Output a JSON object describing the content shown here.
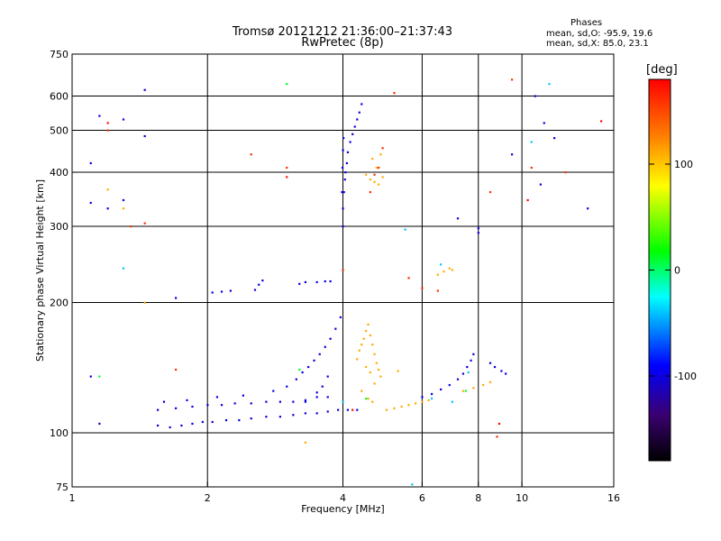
{
  "header": {
    "title_line1": "Tromsø 20121212 21:36:00–21:37:43",
    "title_line2": "RwPretec (8p)",
    "phase_heading": "Phases",
    "phase_stats_0": "mean, sd,O: -95.9, 19.6",
    "phase_stats_x": "mean, sd,X:  85.0, 23.1"
  },
  "colorbar": {
    "unit_label": "[deg]",
    "ticks": [
      {
        "value": 100,
        "label": "100"
      },
      {
        "value": 0,
        "label": "0"
      },
      {
        "value": -100,
        "label": "-100"
      }
    ],
    "range": [
      -180,
      180
    ],
    "colors": [
      "#000000",
      "#3a0070",
      "#0000ff",
      "#00ffff",
      "#00ff00",
      "#ffff00",
      "#ff8000",
      "#ff0000"
    ]
  },
  "chart_data": {
    "type": "scatter",
    "title": "Tromsø 20121212 21:36:00–21:37:43",
    "subtitle": "RwPretec (8p)",
    "xlabel": "Frequency [MHz]",
    "ylabel": "Stationary phase Virtual Height [km]",
    "xscale": "log",
    "yscale": "log",
    "xlim": [
      1,
      16
    ],
    "ylim": [
      75,
      750
    ],
    "grid": true,
    "xticks": [
      {
        "value": 1,
        "label": "1"
      },
      {
        "value": 2,
        "label": "2"
      },
      {
        "value": 4,
        "label": "4"
      },
      {
        "value": 6,
        "label": "6"
      },
      {
        "value": 8,
        "label": "8"
      },
      {
        "value": 10,
        "label": "10"
      },
      {
        "value": 16,
        "label": "16"
      }
    ],
    "xgrid": [
      2,
      4,
      6,
      8,
      10
    ],
    "yticks": [
      {
        "value": 75,
        "label": "75"
      },
      {
        "value": 100,
        "label": "100"
      },
      {
        "value": 200,
        "label": "200"
      },
      {
        "value": 300,
        "label": "300"
      },
      {
        "value": 400,
        "label": "400"
      },
      {
        "value": 500,
        "label": "500"
      },
      {
        "value": 600,
        "label": "600"
      },
      {
        "value": 750,
        "label": "750"
      }
    ],
    "ygrid": [
      100,
      200,
      300,
      400,
      500,
      600
    ],
    "series": [
      {
        "phase_deg": -100,
        "points": [
          [
            1.55,
            104
          ],
          [
            1.65,
            103
          ],
          [
            1.75,
            104
          ],
          [
            1.85,
            105
          ],
          [
            1.95,
            106
          ],
          [
            2.05,
            106
          ],
          [
            2.2,
            107
          ],
          [
            2.35,
            107
          ],
          [
            2.5,
            108
          ],
          [
            2.7,
            109
          ],
          [
            2.9,
            109
          ],
          [
            3.1,
            110
          ],
          [
            3.3,
            111
          ],
          [
            3.5,
            111
          ],
          [
            3.7,
            112
          ],
          [
            3.9,
            113
          ],
          [
            4.1,
            113
          ],
          [
            4.3,
            113
          ],
          [
            1.55,
            113
          ],
          [
            1.7,
            114
          ],
          [
            1.85,
            115
          ],
          [
            2.0,
            116
          ],
          [
            2.15,
            116
          ],
          [
            2.3,
            117
          ],
          [
            2.5,
            117
          ],
          [
            2.7,
            118
          ],
          [
            2.9,
            118
          ],
          [
            3.1,
            118
          ],
          [
            3.3,
            119
          ],
          [
            3.5,
            121
          ],
          [
            3.7,
            121
          ],
          [
            1.6,
            118
          ],
          [
            1.8,
            119
          ],
          [
            2.1,
            121
          ],
          [
            2.4,
            122
          ],
          [
            2.8,
            125
          ],
          [
            3.0,
            128
          ],
          [
            3.15,
            133
          ],
          [
            3.25,
            138
          ],
          [
            3.35,
            142
          ],
          [
            3.45,
            147
          ],
          [
            3.55,
            152
          ],
          [
            3.65,
            158
          ],
          [
            3.75,
            165
          ],
          [
            3.85,
            174
          ],
          [
            3.95,
            185
          ],
          [
            3.3,
            118
          ],
          [
            3.5,
            124
          ],
          [
            3.6,
            128
          ],
          [
            3.7,
            135
          ],
          [
            4.0,
            300
          ],
          [
            4.0,
            330
          ],
          [
            4.02,
            360
          ],
          [
            4.04,
            385
          ],
          [
            4.05,
            400
          ],
          [
            4.08,
            420
          ],
          [
            4.1,
            445
          ],
          [
            4.15,
            470
          ],
          [
            4.2,
            490
          ],
          [
            4.25,
            510
          ],
          [
            4.3,
            530
          ],
          [
            4.35,
            550
          ],
          [
            4.4,
            575
          ],
          [
            3.98,
            360
          ],
          [
            3.99,
            410
          ],
          [
            4.0,
            450
          ],
          [
            4.01,
            480
          ],
          [
            6.0,
            121
          ],
          [
            6.3,
            123
          ],
          [
            6.6,
            126
          ],
          [
            6.9,
            129
          ],
          [
            7.2,
            133
          ],
          [
            7.4,
            137
          ],
          [
            7.55,
            142
          ],
          [
            7.7,
            147
          ],
          [
            7.8,
            152
          ],
          [
            8.5,
            145
          ],
          [
            8.7,
            142
          ],
          [
            9.0,
            139
          ],
          [
            9.2,
            137
          ],
          [
            2.05,
            211
          ],
          [
            2.15,
            212
          ],
          [
            2.25,
            213
          ],
          [
            2.55,
            214
          ],
          [
            2.6,
            220
          ],
          [
            2.65,
            225
          ],
          [
            3.2,
            221
          ],
          [
            3.3,
            223
          ],
          [
            3.5,
            223
          ],
          [
            3.65,
            224
          ],
          [
            3.75,
            224
          ],
          [
            1.15,
            540
          ],
          [
            1.1,
            420
          ],
          [
            1.3,
            530
          ],
          [
            1.45,
            620
          ],
          [
            1.45,
            485
          ],
          [
            1.3,
            345
          ],
          [
            1.1,
            340
          ],
          [
            1.2,
            330
          ],
          [
            1.15,
            105
          ],
          [
            1.1,
            135
          ],
          [
            10.7,
            600
          ],
          [
            11.2,
            520
          ],
          [
            11.8,
            480
          ],
          [
            8.0,
            297
          ],
          [
            8.0,
            290
          ],
          [
            7.2,
            313
          ],
          [
            9.5,
            440
          ],
          [
            11.0,
            375
          ],
          [
            14.0,
            330
          ],
          [
            1.7,
            205
          ]
        ]
      },
      {
        "phase_deg": 110,
        "points": [
          [
            4.3,
            148
          ],
          [
            4.35,
            155
          ],
          [
            4.4,
            160
          ],
          [
            4.45,
            165
          ],
          [
            4.5,
            172
          ],
          [
            4.55,
            178
          ],
          [
            4.6,
            168
          ],
          [
            4.65,
            160
          ],
          [
            4.7,
            152
          ],
          [
            4.75,
            145
          ],
          [
            4.8,
            140
          ],
          [
            4.85,
            135
          ],
          [
            4.5,
            142
          ],
          [
            4.6,
            138
          ],
          [
            4.7,
            130
          ],
          [
            4.4,
            125
          ],
          [
            4.55,
            120
          ],
          [
            4.65,
            118
          ],
          [
            4.5,
            395
          ],
          [
            4.6,
            385
          ],
          [
            4.7,
            380
          ],
          [
            4.8,
            375
          ],
          [
            4.9,
            390
          ],
          [
            4.75,
            410
          ],
          [
            4.65,
            430
          ],
          [
            4.85,
            440
          ],
          [
            5.0,
            113
          ],
          [
            5.2,
            114
          ],
          [
            5.4,
            115
          ],
          [
            5.6,
            116
          ],
          [
            5.8,
            117
          ],
          [
            6.0,
            118
          ],
          [
            6.2,
            119
          ],
          [
            7.4,
            125
          ],
          [
            7.8,
            127
          ],
          [
            8.2,
            129
          ],
          [
            8.5,
            131
          ],
          [
            6.5,
            232
          ],
          [
            6.7,
            236
          ],
          [
            6.9,
            240
          ],
          [
            7.0,
            238
          ],
          [
            1.45,
            200
          ],
          [
            3.3,
            95
          ],
          [
            1.2,
            365
          ],
          [
            1.3,
            330
          ],
          [
            5.3,
            139
          ]
        ]
      },
      {
        "phase_deg": 160,
        "points": [
          [
            4.6,
            360
          ],
          [
            4.7,
            395
          ],
          [
            4.8,
            410
          ],
          [
            4.9,
            455
          ],
          [
            1.35,
            300
          ],
          [
            1.45,
            305
          ],
          [
            2.5,
            440
          ],
          [
            1.7,
            140
          ],
          [
            9.5,
            655
          ],
          [
            5.2,
            610
          ],
          [
            6.5,
            213
          ],
          [
            6.0,
            216
          ],
          [
            5.6,
            228
          ],
          [
            8.5,
            360
          ],
          [
            10.5,
            410
          ],
          [
            12.5,
            400
          ],
          [
            4.0,
            238
          ],
          [
            3.0,
            410
          ],
          [
            1.2,
            500
          ],
          [
            8.8,
            98
          ]
        ]
      },
      {
        "phase_deg": 10,
        "points": [
          [
            3.0,
            640
          ],
          [
            4.5,
            120
          ],
          [
            1.15,
            135
          ],
          [
            7.5,
            125
          ],
          [
            3.2,
            140
          ]
        ]
      },
      {
        "phase_deg": -40,
        "points": [
          [
            6.6,
            245
          ],
          [
            7.6,
            138
          ],
          [
            7.0,
            118
          ],
          [
            6.3,
            120
          ],
          [
            4.0,
            118
          ],
          [
            5.5,
            295
          ],
          [
            5.7,
            76
          ],
          [
            1.3,
            240
          ],
          [
            10.5,
            470
          ],
          [
            11.5,
            640
          ]
        ]
      },
      {
        "phase_deg": 175,
        "points": [
          [
            15.0,
            525
          ],
          [
            10.3,
            345
          ],
          [
            8.9,
            105
          ],
          [
            3.0,
            390
          ],
          [
            1.2,
            520
          ],
          [
            4.2,
            113
          ]
        ]
      }
    ]
  }
}
